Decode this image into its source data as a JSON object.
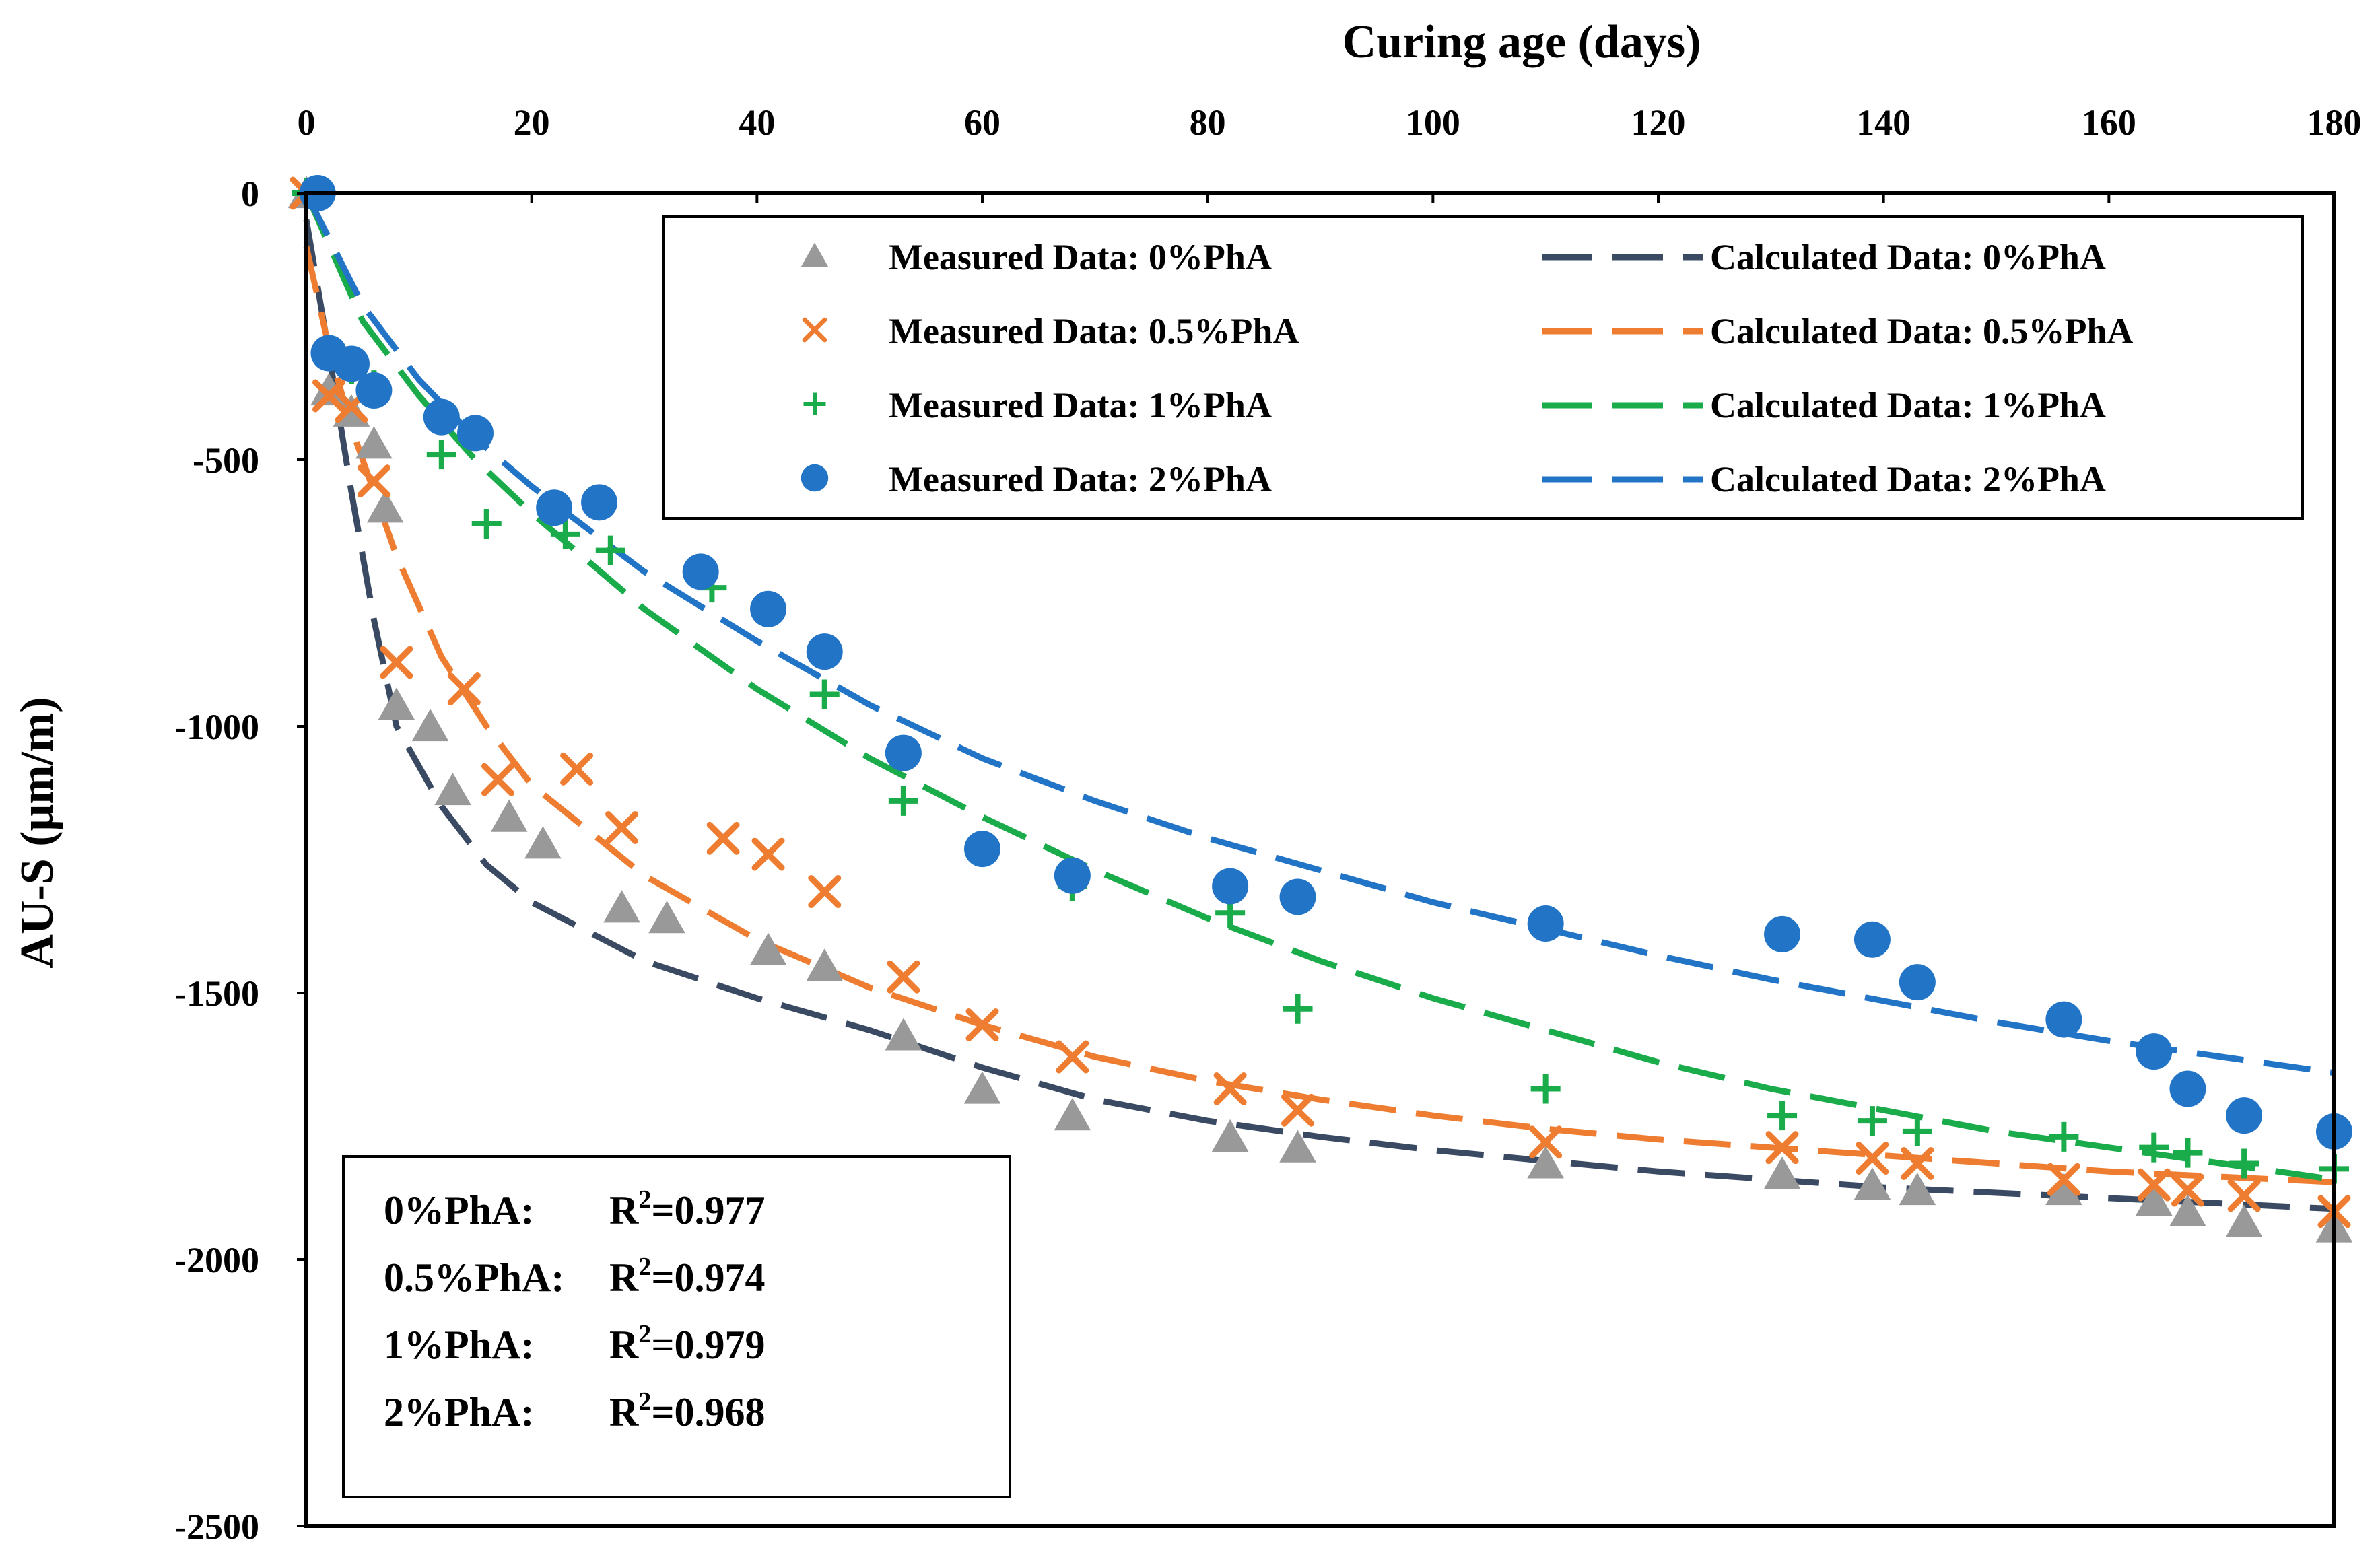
{
  "chart_data": {
    "type": "scatter",
    "title": "",
    "xlabel": "Curing age (days)",
    "ylabel": "AU-S (μm/m)",
    "xlim": [
      0,
      180
    ],
    "ylim": [
      -2500,
      0
    ],
    "xticks": [
      0,
      20,
      40,
      60,
      80,
      100,
      120,
      140,
      160,
      180
    ],
    "yticks": [
      0,
      -500,
      -1000,
      -1500,
      -2000,
      -2500
    ],
    "xaxis_position": "top",
    "legend_position": "top-right",
    "grid": false,
    "colors": {
      "pha0": "#999999",
      "pha0_line": "#3b4a63",
      "pha05": "#ee7d31",
      "pha1": "#1aab4b",
      "pha2": "#2274c7"
    },
    "series": [
      {
        "name": "Measured Data: 0%PhA",
        "kind": "measured",
        "marker": "triangle",
        "color": "#999999",
        "points": [
          [
            0,
            0
          ],
          [
            2,
            -370
          ],
          [
            4,
            -410
          ],
          [
            6,
            -470
          ],
          [
            7,
            -590
          ],
          [
            8,
            -960
          ],
          [
            11,
            -1000
          ],
          [
            13,
            -1120
          ],
          [
            18,
            -1170
          ],
          [
            21,
            -1220
          ],
          [
            28,
            -1340
          ],
          [
            32,
            -1360
          ],
          [
            41,
            -1420
          ],
          [
            46,
            -1450
          ],
          [
            53,
            -1580
          ],
          [
            60,
            -1680
          ],
          [
            68,
            -1730
          ],
          [
            82,
            -1770
          ],
          [
            88,
            -1790
          ],
          [
            110,
            -1820
          ],
          [
            131,
            -1840
          ],
          [
            139,
            -1860
          ],
          [
            143,
            -1870
          ],
          [
            156,
            -1870
          ],
          [
            164,
            -1890
          ],
          [
            167,
            -1910
          ],
          [
            172,
            -1930
          ],
          [
            180,
            -1940
          ]
        ]
      },
      {
        "name": "Measured Data: 0.5%PhA",
        "kind": "measured",
        "marker": "x",
        "color": "#ee7d31",
        "points": [
          [
            0,
            0
          ],
          [
            2,
            -380
          ],
          [
            4,
            -400
          ],
          [
            6,
            -540
          ],
          [
            8,
            -880
          ],
          [
            14,
            -930
          ],
          [
            17,
            -1100
          ],
          [
            24,
            -1080
          ],
          [
            28,
            -1190
          ],
          [
            37,
            -1210
          ],
          [
            41,
            -1240
          ],
          [
            46,
            -1310
          ],
          [
            53,
            -1470
          ],
          [
            60,
            -1560
          ],
          [
            68,
            -1620
          ],
          [
            82,
            -1680
          ],
          [
            88,
            -1720
          ],
          [
            110,
            -1780
          ],
          [
            131,
            -1790
          ],
          [
            139,
            -1810
          ],
          [
            143,
            -1820
          ],
          [
            156,
            -1850
          ],
          [
            164,
            -1860
          ],
          [
            167,
            -1870
          ],
          [
            172,
            -1880
          ],
          [
            180,
            -1910
          ]
        ]
      },
      {
        "name": "Measured Data: 1%PhA",
        "kind": "measured",
        "marker": "plus",
        "color": "#1aab4b",
        "points": [
          [
            0,
            0
          ],
          [
            2,
            -300
          ],
          [
            4,
            -330
          ],
          [
            6,
            -360
          ],
          [
            12,
            -490
          ],
          [
            16,
            -620
          ],
          [
            23,
            -640
          ],
          [
            27,
            -670
          ],
          [
            36,
            -740
          ],
          [
            46,
            -940
          ],
          [
            53,
            -1140
          ],
          [
            68,
            -1300
          ],
          [
            82,
            -1350
          ],
          [
            88,
            -1530
          ],
          [
            110,
            -1680
          ],
          [
            131,
            -1730
          ],
          [
            139,
            -1740
          ],
          [
            143,
            -1760
          ],
          [
            156,
            -1770
          ],
          [
            164,
            -1790
          ],
          [
            167,
            -1800
          ],
          [
            172,
            -1820
          ],
          [
            180,
            -1830
          ]
        ]
      },
      {
        "name": "Measured Data: 2%PhA",
        "kind": "measured",
        "marker": "circle",
        "color": "#2274c7",
        "points": [
          [
            1,
            0
          ],
          [
            2,
            -300
          ],
          [
            4,
            -320
          ],
          [
            6,
            -370
          ],
          [
            12,
            -420
          ],
          [
            15,
            -450
          ],
          [
            22,
            -590
          ],
          [
            26,
            -580
          ],
          [
            35,
            -710
          ],
          [
            41,
            -780
          ],
          [
            46,
            -860
          ],
          [
            53,
            -1050
          ],
          [
            60,
            -1230
          ],
          [
            68,
            -1280
          ],
          [
            82,
            -1300
          ],
          [
            88,
            -1320
          ],
          [
            110,
            -1370
          ],
          [
            131,
            -1390
          ],
          [
            139,
            -1400
          ],
          [
            143,
            -1480
          ],
          [
            156,
            -1550
          ],
          [
            164,
            -1610
          ],
          [
            167,
            -1680
          ],
          [
            172,
            -1730
          ],
          [
            180,
            -1760
          ]
        ]
      },
      {
        "name": "Calculated Data: 0%PhA",
        "kind": "calculated",
        "color": "#3b4a63",
        "points": [
          [
            0,
            -50
          ],
          [
            2,
            -300
          ],
          [
            4,
            -560
          ],
          [
            6,
            -800
          ],
          [
            8,
            -1000
          ],
          [
            12,
            -1150
          ],
          [
            16,
            -1260
          ],
          [
            20,
            -1330
          ],
          [
            30,
            -1440
          ],
          [
            40,
            -1510
          ],
          [
            50,
            -1570
          ],
          [
            60,
            -1640
          ],
          [
            70,
            -1700
          ],
          [
            80,
            -1740
          ],
          [
            90,
            -1770
          ],
          [
            100,
            -1795
          ],
          [
            110,
            -1815
          ],
          [
            120,
            -1835
          ],
          [
            130,
            -1850
          ],
          [
            140,
            -1865
          ],
          [
            150,
            -1875
          ],
          [
            160,
            -1885
          ],
          [
            170,
            -1895
          ],
          [
            180,
            -1905
          ]
        ]
      },
      {
        "name": "Calculated Data: 0.5%PhA",
        "kind": "calculated",
        "color": "#ee7d31",
        "points": [
          [
            0,
            -100
          ],
          [
            2,
            -290
          ],
          [
            4,
            -440
          ],
          [
            6,
            -560
          ],
          [
            8,
            -680
          ],
          [
            12,
            -870
          ],
          [
            16,
            -1000
          ],
          [
            20,
            -1110
          ],
          [
            30,
            -1280
          ],
          [
            40,
            -1400
          ],
          [
            50,
            -1490
          ],
          [
            60,
            -1560
          ],
          [
            70,
            -1620
          ],
          [
            80,
            -1665
          ],
          [
            90,
            -1700
          ],
          [
            100,
            -1730
          ],
          [
            110,
            -1755
          ],
          [
            120,
            -1775
          ],
          [
            130,
            -1790
          ],
          [
            140,
            -1805
          ],
          [
            150,
            -1820
          ],
          [
            160,
            -1835
          ],
          [
            170,
            -1845
          ],
          [
            180,
            -1855
          ]
        ]
      },
      {
        "name": "Calculated Data: 1%PhA",
        "kind": "calculated",
        "color": "#1aab4b",
        "points": [
          [
            0,
            0
          ],
          [
            5,
            -240
          ],
          [
            10,
            -380
          ],
          [
            15,
            -500
          ],
          [
            20,
            -600
          ],
          [
            30,
            -780
          ],
          [
            40,
            -930
          ],
          [
            50,
            -1060
          ],
          [
            60,
            -1170
          ],
          [
            70,
            -1270
          ],
          [
            80,
            -1360
          ],
          [
            90,
            -1440
          ],
          [
            100,
            -1510
          ],
          [
            110,
            -1570
          ],
          [
            120,
            -1630
          ],
          [
            130,
            -1680
          ],
          [
            140,
            -1720
          ],
          [
            150,
            -1760
          ],
          [
            160,
            -1790
          ],
          [
            170,
            -1820
          ],
          [
            180,
            -1850
          ]
        ]
      },
      {
        "name": "Calculated Data: 2%PhA",
        "kind": "calculated",
        "color": "#2274c7",
        "points": [
          [
            0,
            0
          ],
          [
            5,
            -210
          ],
          [
            10,
            -350
          ],
          [
            15,
            -460
          ],
          [
            20,
            -550
          ],
          [
            30,
            -710
          ],
          [
            40,
            -840
          ],
          [
            50,
            -960
          ],
          [
            60,
            -1060
          ],
          [
            70,
            -1140
          ],
          [
            80,
            -1210
          ],
          [
            90,
            -1270
          ],
          [
            100,
            -1330
          ],
          [
            110,
            -1380
          ],
          [
            120,
            -1430
          ],
          [
            130,
            -1475
          ],
          [
            140,
            -1515
          ],
          [
            150,
            -1555
          ],
          [
            160,
            -1590
          ],
          [
            170,
            -1620
          ],
          [
            180,
            -1650
          ]
        ]
      }
    ],
    "r2_box": [
      {
        "label": "0%PhA:",
        "r": "R",
        "sup": "2",
        "value": "=0.977"
      },
      {
        "label": "0.5%PhA:",
        "r": "R",
        "sup": "2",
        "value": "=0.974"
      },
      {
        "label": "1%PhA:",
        "r": "R",
        "sup": "2",
        "value": "=0.979"
      },
      {
        "label": "2%PhA:",
        "r": "R",
        "sup": "2",
        "value": "=0.968"
      }
    ]
  }
}
